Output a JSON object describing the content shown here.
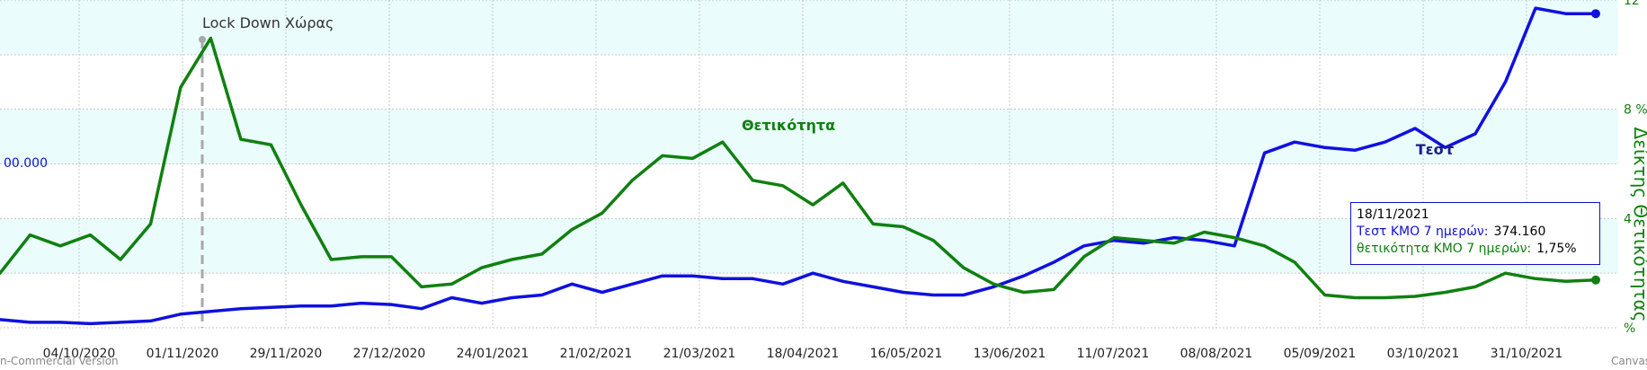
{
  "chart_data": {
    "type": "line",
    "x_ticks": [
      "04/10/2020",
      "01/11/2020",
      "29/11/2020",
      "27/12/2020",
      "24/01/2021",
      "21/02/2021",
      "21/03/2021",
      "18/04/2021",
      "16/05/2021",
      "13/06/2021",
      "11/07/2021",
      "08/08/2021",
      "05/09/2021",
      "03/10/2021",
      "31/10/2021"
    ],
    "y_left_ticks": [
      "00.000"
    ],
    "y_right_ticks": [
      "12",
      "8 %",
      "4",
      "%"
    ],
    "y_right_label": "Δείκτης Θετικότητας",
    "y_right_max": 12,
    "series": [
      {
        "name": "Τεστ",
        "color": "#1010e0",
        "values": [
          0.3,
          0.2,
          0.2,
          0.15,
          0.2,
          0.25,
          0.5,
          0.6,
          0.7,
          0.75,
          0.8,
          0.8,
          0.9,
          0.85,
          0.7,
          1.1,
          0.9,
          1.1,
          1.2,
          1.6,
          1.3,
          1.6,
          1.9,
          1.9,
          1.8,
          1.8,
          1.6,
          2.0,
          1.7,
          1.5,
          1.3,
          1.2,
          1.2,
          1.5,
          1.9,
          2.4,
          3.0,
          3.2,
          3.1,
          3.3,
          3.2,
          3.0,
          6.4,
          6.8,
          6.6,
          6.5,
          6.8,
          7.3,
          6.6,
          7.1,
          9.0,
          11.7,
          11.5,
          11.5
        ]
      },
      {
        "name": "Θετικότητα",
        "color": "#108010",
        "values": [
          2.0,
          3.4,
          3.0,
          3.4,
          2.5,
          3.8,
          8.8,
          10.6,
          6.9,
          6.7,
          4.5,
          2.5,
          2.6,
          2.6,
          1.5,
          1.6,
          2.2,
          2.5,
          2.7,
          3.6,
          4.2,
          5.4,
          6.3,
          6.2,
          6.8,
          5.4,
          5.2,
          4.5,
          5.3,
          3.8,
          3.7,
          3.2,
          2.2,
          1.6,
          1.3,
          1.4,
          2.6,
          3.3,
          3.2,
          3.1,
          3.5,
          3.3,
          3.0,
          2.4,
          1.2,
          1.1,
          1.1,
          1.15,
          1.3,
          1.5,
          2.0,
          1.8,
          1.7,
          1.75
        ]
      }
    ],
    "annotation": "Lock Down Χώρας",
    "tooltip": {
      "date": "18/11/2021",
      "tests_label": "Τεστ ΚΜΟ 7 ημερών:",
      "tests_value": "374.160",
      "positivity_label": "θετικότητα ΚΜΟ 7 ημερών:",
      "positivity_value": "1,75%"
    },
    "credit_left": "n-Commercial Version",
    "credit_right": "CanvasJS.com",
    "grid": true
  }
}
